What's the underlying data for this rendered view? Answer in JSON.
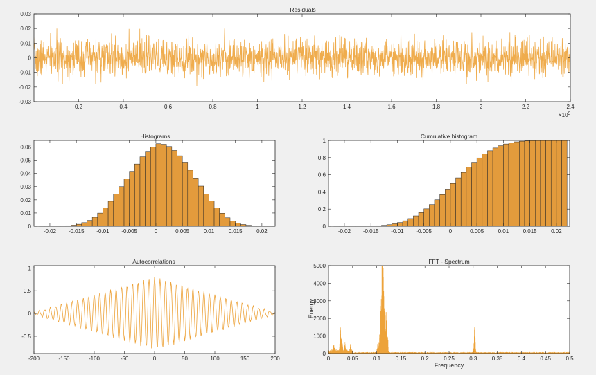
{
  "chart_data": [
    {
      "id": "residuals",
      "type": "line",
      "title": "Residuals",
      "xlabel": "",
      "ylabel": "",
      "xlim": [
        0,
        240000
      ],
      "ylim": [
        -0.03,
        0.03
      ],
      "x_exponent_label": "×10",
      "x_exponent_power": "5",
      "x_ticks": [
        20000,
        40000,
        60000,
        80000,
        100000,
        120000,
        140000,
        160000,
        180000,
        200000,
        220000,
        240000
      ],
      "x_tick_labels": [
        "0.2",
        "0.4",
        "0.6",
        "0.8",
        "1",
        "1.2",
        "1.4",
        "1.6",
        "1.8",
        "2",
        "2.2",
        "2.4"
      ],
      "y_ticks": [
        -0.03,
        -0.02,
        -0.01,
        0,
        0.01,
        0.02,
        0.03
      ],
      "y_tick_labels": [
        "-0.03",
        "-0.02",
        "-0.01",
        "0",
        "0.01",
        "0.02",
        "0.03"
      ],
      "noise_std": 0.0064,
      "noise_peak_abs": 0.022,
      "grid": false,
      "color": "#eda33a"
    },
    {
      "id": "histogram",
      "type": "bar",
      "title": "Histograms",
      "xlabel": "",
      "ylabel": "",
      "xlim": [
        -0.023,
        0.0225
      ],
      "ylim": [
        0,
        0.065
      ],
      "bin_start": -0.022,
      "bin_width": 0.001,
      "values": [
        1e-05,
        2e-05,
        5e-05,
        0.0001,
        0.0002,
        0.0004,
        0.0008,
        0.0015,
        0.0027,
        0.0044,
        0.0068,
        0.0099,
        0.014,
        0.0189,
        0.0243,
        0.03,
        0.0358,
        0.0416,
        0.0471,
        0.0526,
        0.0568,
        0.0601,
        0.0625,
        0.0621,
        0.0604,
        0.0574,
        0.0534,
        0.0485,
        0.0425,
        0.0365,
        0.0304,
        0.0245,
        0.0192,
        0.0139,
        0.0098,
        0.0064,
        0.004,
        0.0024,
        0.0013,
        0.0007,
        0.0003,
        0.00015,
        5e-05,
        2e-05
      ],
      "x_ticks": [
        -0.02,
        -0.015,
        -0.01,
        -0.005,
        0,
        0.005,
        0.01,
        0.015,
        0.02
      ],
      "x_tick_labels": [
        "-0.02",
        "-0.015",
        "-0.01",
        "-0.005",
        "0",
        "0.005",
        "0.01",
        "0.015",
        "0.02"
      ],
      "y_ticks": [
        0,
        0.01,
        0.02,
        0.03,
        0.04,
        0.05,
        0.06
      ],
      "y_tick_labels": [
        "0",
        "0.01",
        "0.02",
        "0.03",
        "0.04",
        "0.05",
        "0.06"
      ],
      "grid": false,
      "color": "#e39b3c"
    },
    {
      "id": "cumulative",
      "type": "bar",
      "title": "Cumulative histogram",
      "xlabel": "",
      "ylabel": "",
      "xlim": [
        -0.023,
        0.0225
      ],
      "ylim": [
        0,
        1
      ],
      "x_ticks": [
        -0.02,
        -0.015,
        -0.01,
        -0.005,
        0,
        0.005,
        0.01,
        0.015,
        0.02
      ],
      "x_tick_labels": [
        "-0.02",
        "-0.015",
        "-0.01",
        "-0.005",
        "0",
        "0.005",
        "0.01",
        "0.015",
        "0.02"
      ],
      "y_ticks": [
        0,
        0.2,
        0.4,
        0.6,
        0.8,
        1
      ],
      "y_tick_labels": [
        "0",
        "0.2",
        "0.4",
        "0.6",
        "0.8",
        "1"
      ],
      "grid": false,
      "color": "#e39b3c"
    },
    {
      "id": "autocorrelation",
      "type": "line",
      "title": "Autocorrelations",
      "xlabel": "",
      "ylabel": "",
      "xlim": [
        -200,
        200
      ],
      "ylim": [
        -0.88,
        1.05
      ],
      "lag_step": 1,
      "oscillation_period": 9.1,
      "peak_amplitude": 0.8,
      "x_ticks": [
        -200,
        -150,
        -100,
        -50,
        0,
        50,
        100,
        150,
        200
      ],
      "x_tick_labels": [
        "-200",
        "-150",
        "-100",
        "-50",
        "0",
        "50",
        "100",
        "150",
        "200"
      ],
      "y_ticks": [
        -0.5,
        0,
        0.5,
        1
      ],
      "y_tick_labels": [
        "-0.5",
        "0",
        "0.5",
        "1"
      ],
      "grid": false,
      "color": "#eda33a"
    },
    {
      "id": "fft",
      "type": "line",
      "title": "FFT - Spectrum",
      "xlabel": "Frequency",
      "ylabel": "Energy",
      "xlim": [
        0,
        0.5
      ],
      "ylim": [
        0,
        5000
      ],
      "peaks": [
        {
          "f": 0.011,
          "energy": 450
        },
        {
          "f": 0.025,
          "energy": 1450
        },
        {
          "f": 0.028,
          "energy": 700
        },
        {
          "f": 0.034,
          "energy": 500
        },
        {
          "f": 0.046,
          "energy": 400
        },
        {
          "f": 0.108,
          "energy": 2400
        },
        {
          "f": 0.111,
          "energy": 3900
        },
        {
          "f": 0.113,
          "energy": 4850
        },
        {
          "f": 0.116,
          "energy": 2900
        },
        {
          "f": 0.12,
          "energy": 1800
        },
        {
          "f": 0.303,
          "energy": 1700
        }
      ],
      "x_ticks": [
        0,
        0.05,
        0.1,
        0.15,
        0.2,
        0.25,
        0.3,
        0.35,
        0.4,
        0.45,
        0.5
      ],
      "x_tick_labels": [
        "0",
        "0.05",
        "0.1",
        "0.15",
        "0.2",
        "0.25",
        "0.3",
        "0.35",
        "0.4",
        "0.45",
        "0.5"
      ],
      "y_ticks": [
        0,
        1000,
        2000,
        3000,
        4000,
        5000
      ],
      "y_tick_labels": [
        "0",
        "1000",
        "2000",
        "3000",
        "4000",
        "5000"
      ],
      "grid": false,
      "color": "#eda33a"
    }
  ]
}
